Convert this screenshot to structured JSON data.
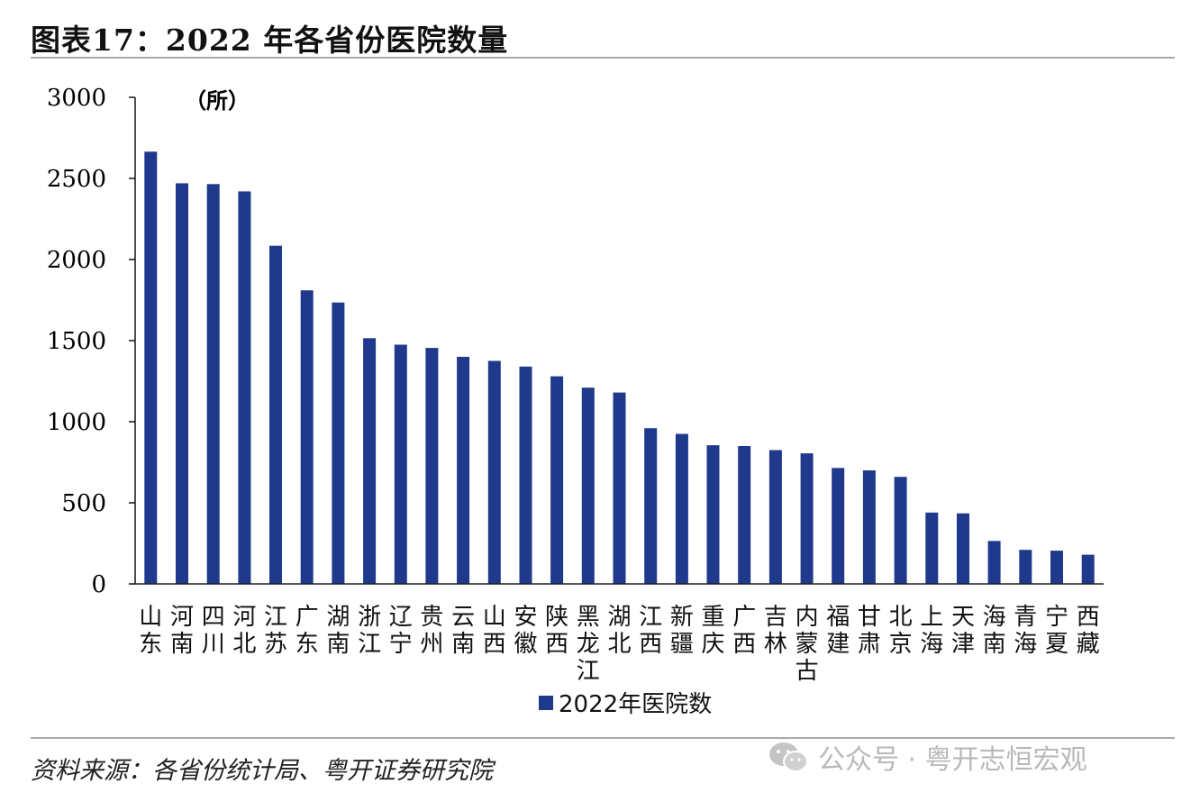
{
  "header": {
    "figure_title": "图表17：2022 年各省份医院数量"
  },
  "footer": {
    "source": "资料来源：各省份统计局、粤开证券研究院",
    "watermark_text": "公众号 · 粤开志恒宏观",
    "watermark_icon": "wechat-icon"
  },
  "colors": {
    "bar": "#1f3a8c",
    "rule": "#a9a9a9"
  },
  "chart_data": {
    "type": "bar",
    "title": "",
    "unit_label": "（所）",
    "xlabel": "",
    "ylabel": "",
    "ylim": [
      0,
      3000
    ],
    "yticks": [
      0,
      500,
      1000,
      1500,
      2000,
      2500,
      3000
    ],
    "grid": false,
    "legend_position": "bottom-center",
    "categories": [
      "山东",
      "河南",
      "四川",
      "河北",
      "江苏",
      "广东",
      "湖南",
      "浙江",
      "辽宁",
      "贵州",
      "云南",
      "山西",
      "安徽",
      "陕西",
      "黑龙江",
      "湖北",
      "江西",
      "新疆",
      "重庆",
      "广西",
      "吉林",
      "内蒙古",
      "福建",
      "甘肃",
      "北京",
      "上海",
      "天津",
      "海南",
      "青海",
      "宁夏",
      "西藏"
    ],
    "series": [
      {
        "name": "2022年医院数",
        "color": "#1f3a8c",
        "values": [
          2665,
          2470,
          2465,
          2420,
          2085,
          1810,
          1735,
          1515,
          1475,
          1455,
          1400,
          1375,
          1340,
          1280,
          1210,
          1180,
          960,
          925,
          855,
          850,
          825,
          805,
          715,
          700,
          660,
          440,
          435,
          265,
          210,
          205,
          180
        ]
      }
    ]
  }
}
